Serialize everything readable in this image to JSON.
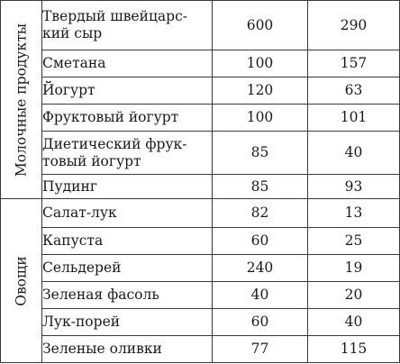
{
  "groups": [
    {
      "label": "Молочные продукты",
      "rows": [
        {
          "name": [
            "Твердый швейцарс-",
            "кий сыр"
          ],
          "a": "600",
          "b": "290"
        },
        {
          "name": [
            "Сметана"
          ],
          "a": "100",
          "b": "157"
        },
        {
          "name": [
            "Йогурт"
          ],
          "a": "120",
          "b": "63"
        },
        {
          "name": [
            "Фруктовый йогурт"
          ],
          "a": "100",
          "b": "101"
        },
        {
          "name": [
            "Диетический фрук-",
            "товый йогурт"
          ],
          "a": "85",
          "b": "40"
        },
        {
          "name": [
            "Пудинг"
          ],
          "a": "85",
          "b": "93"
        }
      ]
    },
    {
      "label": "Овощи",
      "rows": [
        {
          "name": [
            "Салат-лук"
          ],
          "a": "82",
          "b": "13"
        },
        {
          "name": [
            "Капуста"
          ],
          "a": "60",
          "b": "25"
        },
        {
          "name": [
            "Сельдерей"
          ],
          "a": "240",
          "b": "19"
        },
        {
          "name": [
            "Зеленая фасоль"
          ],
          "a": "40",
          "b": "20"
        },
        {
          "name": [
            "Лук-порей"
          ],
          "a": "60",
          "b": "40"
        },
        {
          "name": [
            "Зеленые оливки"
          ],
          "a": "77",
          "b": "115"
        }
      ]
    }
  ]
}
